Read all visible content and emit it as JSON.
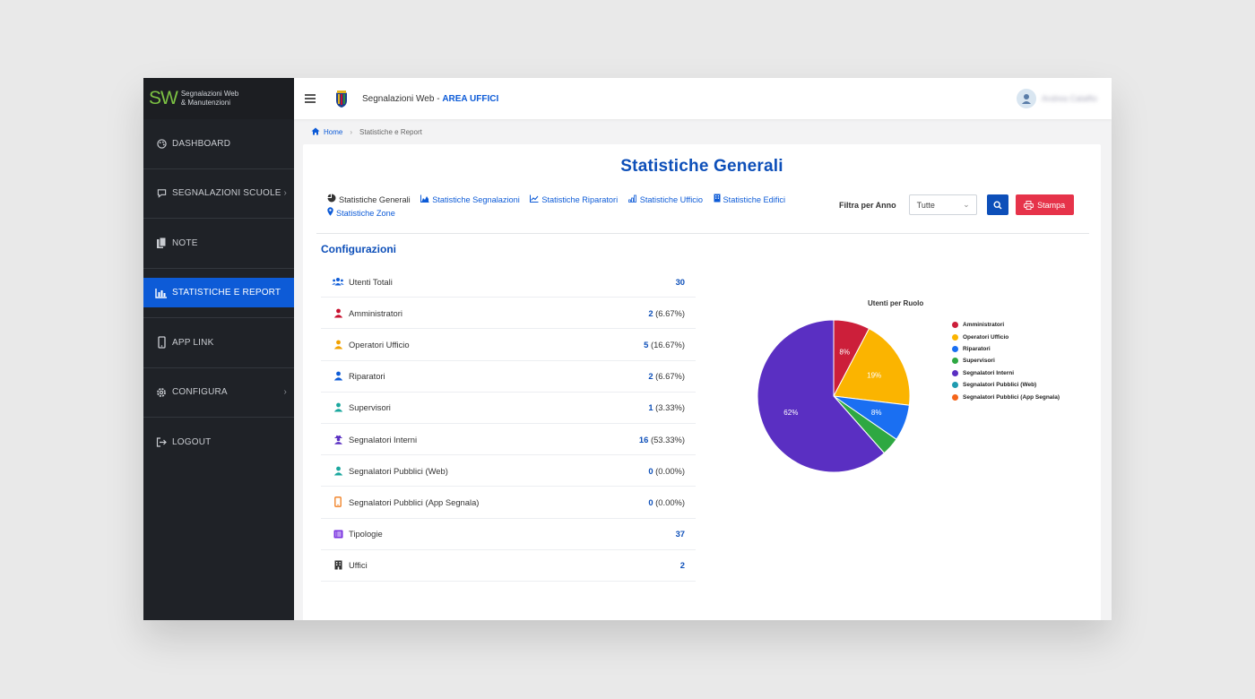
{
  "brand": {
    "mark": "SW",
    "line1": "Segnalazioni Web",
    "line2": "& Manutenzioni"
  },
  "sidebar": {
    "items": [
      {
        "label": "DASHBOARD",
        "icon": "palette-icon"
      },
      {
        "label": "SEGNALAZIONI SCUOLE",
        "icon": "comment-icon",
        "chevron": true
      },
      {
        "label": "NOTE",
        "icon": "copy-icon"
      },
      {
        "label": "STATISTICHE E REPORT",
        "icon": "bar-chart-icon",
        "active": true
      },
      {
        "label": "APP LINK",
        "icon": "mobile-icon"
      },
      {
        "label": "CONFIGURA",
        "icon": "cog-icon",
        "chevron": true
      },
      {
        "label": "LOGOUT",
        "icon": "logout-icon"
      }
    ]
  },
  "header": {
    "title_prefix": "Segnalazioni Web - ",
    "title_area": "AREA UFFICI",
    "user_name": "Andrea Catalfio"
  },
  "breadcrumb": {
    "home": "Home",
    "current": "Statistiche e Report"
  },
  "page": {
    "title": "Statistiche Generali",
    "tabs": [
      {
        "label": "Statistiche Generali",
        "current": true
      },
      {
        "label": "Statistiche Segnalazioni"
      },
      {
        "label": "Statistiche Riparatori"
      },
      {
        "label": "Statistiche Ufficio"
      },
      {
        "label": "Statistiche Edifici"
      },
      {
        "label": "Statistiche Zone"
      }
    ],
    "filter_label": "Filtra per Anno",
    "year_select": "Tutte",
    "print_label": "Stampa",
    "section_title": "Configurazioni"
  },
  "stats": [
    {
      "label": "Utenti Totali",
      "num": "30",
      "pct": "",
      "icon": "users-icon",
      "color": "#0d5bd7"
    },
    {
      "label": "Amministratori",
      "num": "2",
      "pct": " (6.67%)",
      "icon": "user-icon",
      "color": "#c8102e"
    },
    {
      "label": "Operatori Ufficio",
      "num": "5",
      "pct": " (16.67%)",
      "icon": "user-icon",
      "color": "#f2a100"
    },
    {
      "label": "Riparatori",
      "num": "2",
      "pct": " (6.67%)",
      "icon": "user-icon",
      "color": "#0d5bd7"
    },
    {
      "label": "Supervisori",
      "num": "1",
      "pct": " (3.33%)",
      "icon": "user-icon",
      "color": "#1aa79e"
    },
    {
      "label": "Segnalatori Interni",
      "num": "16",
      "pct": " (53.33%)",
      "icon": "user-secret-icon",
      "color": "#5a2fc2"
    },
    {
      "label": "Segnalatori Pubblici (Web)",
      "num": "0",
      "pct": " (0.00%)",
      "icon": "user-icon",
      "color": "#1aa79e"
    },
    {
      "label": "Segnalatori Pubblici (App Segnala)",
      "num": "0",
      "pct": " (0.00%)",
      "icon": "mobile-icon",
      "color": "#f07c1d"
    },
    {
      "label": "Tipologie",
      "num": "37",
      "pct": "",
      "icon": "list-icon",
      "color": "#7a33e0"
    },
    {
      "label": "Uffici",
      "num": "2",
      "pct": "",
      "icon": "building-icon",
      "color": "#333333"
    }
  ],
  "chart_data": {
    "type": "pie",
    "title": "Utenti per Ruolo",
    "legend_position": "right",
    "categories": [
      "Amministratori",
      "Operatori Ufficio",
      "Riparatori",
      "Supervisori",
      "Segnalatori Interni",
      "Segnalatori Pubblici (Web)",
      "Segnalatori Pubblici (App Segnala)"
    ],
    "values": [
      2,
      5,
      2,
      1,
      16,
      0,
      0
    ],
    "slice_labels": [
      "8%",
      "19%",
      "8%",
      "",
      "62%",
      "",
      ""
    ],
    "colors": [
      "#cc1f3a",
      "#fbb400",
      "#1a6ff2",
      "#2ea842",
      "#5a2fc2",
      "#1f9bb0",
      "#f5651a"
    ]
  }
}
